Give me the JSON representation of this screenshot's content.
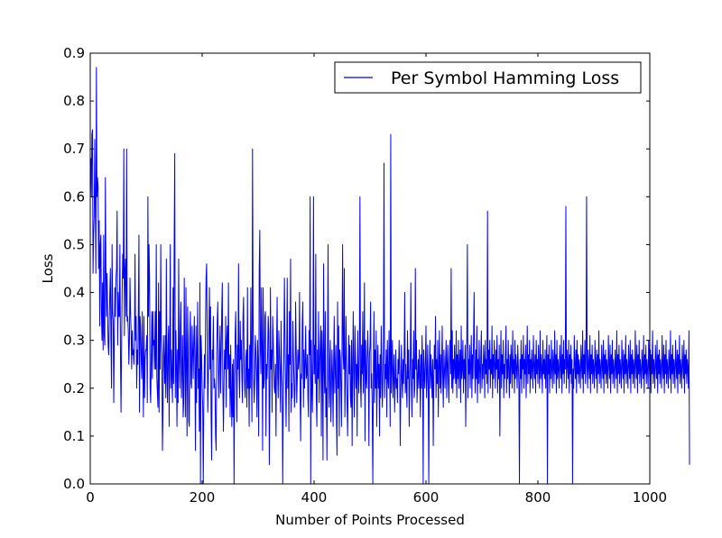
{
  "chart_data": {
    "type": "line",
    "title": "",
    "xlabel": "Number of Points Processed",
    "ylabel": "Loss",
    "xlim": [
      0,
      1000
    ],
    "ylim": [
      0.0,
      0.9
    ],
    "x_ticks": [
      0,
      200,
      400,
      600,
      800,
      1000
    ],
    "x_tick_labels": [
      "0",
      "200",
      "400",
      "600",
      "800",
      "1000"
    ],
    "y_ticks": [
      0.0,
      0.1,
      0.2,
      0.3,
      0.4,
      0.5,
      0.6,
      0.7,
      0.8,
      0.9
    ],
    "y_tick_labels": [
      "0.0",
      "0.1",
      "0.2",
      "0.3",
      "0.4",
      "0.5",
      "0.6",
      "0.7",
      "0.8",
      "0.9"
    ],
    "grid": false,
    "legend_position": "top-right",
    "x_start": 0,
    "x_step": 1,
    "series": [
      {
        "name": "Per Symbol Hamming Loss",
        "color": "#0000ff",
        "values": [
          0.65,
          0.68,
          0.6,
          0.73,
          0.74,
          0.44,
          0.52,
          0.56,
          0.72,
          0.58,
          0.44,
          0.87,
          0.6,
          0.64,
          0.62,
          0.45,
          0.55,
          0.33,
          0.5,
          0.52,
          0.36,
          0.3,
          0.42,
          0.28,
          0.52,
          0.31,
          0.29,
          0.64,
          0.45,
          0.35,
          0.44,
          0.36,
          0.29,
          0.27,
          0.34,
          0.4,
          0.45,
          0.3,
          0.2,
          0.5,
          0.36,
          0.34,
          0.17,
          0.31,
          0.41,
          0.35,
          0.43,
          0.45,
          0.57,
          0.29,
          0.4,
          0.35,
          0.35,
          0.5,
          0.27,
          0.15,
          0.29,
          0.4,
          0.48,
          0.43,
          0.7,
          0.31,
          0.44,
          0.47,
          0.35,
          0.7,
          0.34,
          0.35,
          0.32,
          0.25,
          0.3,
          0.43,
          0.36,
          0.32,
          0.24,
          0.32,
          0.27,
          0.28,
          0.25,
          0.3,
          0.48,
          0.3,
          0.35,
          0.2,
          0.28,
          0.25,
          0.36,
          0.52,
          0.15,
          0.35,
          0.33,
          0.26,
          0.22,
          0.36,
          0.25,
          0.14,
          0.35,
          0.18,
          0.26,
          0.28,
          0.28,
          0.31,
          0.17,
          0.6,
          0.35,
          0.5,
          0.43,
          0.2,
          0.17,
          0.26,
          0.36,
          0.22,
          0.36,
          0.29,
          0.3,
          0.24,
          0.36,
          0.24,
          0.5,
          0.22,
          0.19,
          0.16,
          0.42,
          0.15,
          0.36,
          0.24,
          0.5,
          0.3,
          0.27,
          0.07,
          0.15,
          0.31,
          0.26,
          0.21,
          0.31,
          0.18,
          0.47,
          0.23,
          0.17,
          0.29,
          0.33,
          0.12,
          0.28,
          0.5,
          0.2,
          0.28,
          0.22,
          0.17,
          0.41,
          0.21,
          0.5,
          0.69,
          0.18,
          0.32,
          0.25,
          0.12,
          0.28,
          0.17,
          0.47,
          0.26,
          0.2,
          0.33,
          0.38,
          0.18,
          0.24,
          0.31,
          0.14,
          0.17,
          0.43,
          0.26,
          0.14,
          0.41,
          0.24,
          0.1,
          0.37,
          0.29,
          0.13,
          0.12,
          0.31,
          0.36,
          0.21,
          0.2,
          0.33,
          0.28,
          0.22,
          0.3,
          0.35,
          0.24,
          0.07,
          0.33,
          0.17,
          0.27,
          0.38,
          0.2,
          0.24,
          0.11,
          0.42,
          0.0,
          0.31,
          0.27,
          0.2,
          0.16,
          0.0,
          0.17,
          0.27,
          0.2,
          0.33,
          0.43,
          0.46,
          0.31,
          0.15,
          0.22,
          0.32,
          0.41,
          0.24,
          0.37,
          0.14,
          0.05,
          0.28,
          0.26,
          0.35,
          0.2,
          0.22,
          0.2,
          0.1,
          0.07,
          0.27,
          0.34,
          0.38,
          0.23,
          0.18,
          0.27,
          0.33,
          0.19,
          0.27,
          0.36,
          0.42,
          0.2,
          0.11,
          0.21,
          0.28,
          0.24,
          0.35,
          0.16,
          0.3,
          0.33,
          0.24,
          0.42,
          0.2,
          0.27,
          0.14,
          0.29,
          0.18,
          0.12,
          0.25,
          0.14,
          0.26,
          0.0,
          0.2,
          0.31,
          0.36,
          0.25,
          0.13,
          0.29,
          0.24,
          0.46,
          0.23,
          0.18,
          0.34,
          0.26,
          0.3,
          0.22,
          0.17,
          0.35,
          0.39,
          0.25,
          0.2,
          0.18,
          0.26,
          0.28,
          0.16,
          0.41,
          0.2,
          0.24,
          0.12,
          0.29,
          0.2,
          0.41,
          0.24,
          0.13,
          0.7,
          0.35,
          0.22,
          0.17,
          0.22,
          0.31,
          0.28,
          0.23,
          0.14,
          0.3,
          0.25,
          0.1,
          0.45,
          0.53,
          0.28,
          0.23,
          0.41,
          0.29,
          0.07,
          0.41,
          0.2,
          0.22,
          0.35,
          0.36,
          0.1,
          0.25,
          0.22,
          0.27,
          0.35,
          0.32,
          0.04,
          0.18,
          0.41,
          0.24,
          0.28,
          0.15,
          0.35,
          0.3,
          0.25,
          0.2,
          0.19,
          0.25,
          0.1,
          0.29,
          0.39,
          0.22,
          0.18,
          0.32,
          0.28,
          0.22,
          0.15,
          0.34,
          0.24,
          0.2,
          0.0,
          0.17,
          0.27,
          0.43,
          0.31,
          0.22,
          0.12,
          0.24,
          0.43,
          0.2,
          0.27,
          0.11,
          0.36,
          0.25,
          0.47,
          0.15,
          0.21,
          0.18,
          0.34,
          0.27,
          0.22,
          0.16,
          0.2,
          0.38,
          0.29,
          0.17,
          0.22,
          0.28,
          0.24,
          0.26,
          0.4,
          0.2,
          0.09,
          0.23,
          0.22,
          0.34,
          0.38,
          0.16,
          0.28,
          0.2,
          0.25,
          0.33,
          0.22,
          0.23,
          0.27,
          0.18,
          0.14,
          0.32,
          0.27,
          0.6,
          0.0,
          0.3,
          0.2,
          0.15,
          0.26,
          0.6,
          0.23,
          0.29,
          0.21,
          0.48,
          0.18,
          0.12,
          0.28,
          0.22,
          0.36,
          0.17,
          0.24,
          0.29,
          0.33,
          0.1,
          0.32,
          0.26,
          0.05,
          0.46,
          0.24,
          0.19,
          0.36,
          0.14,
          0.2,
          0.05,
          0.27,
          0.5,
          0.22,
          0.16,
          0.26,
          0.3,
          0.13,
          0.2,
          0.28,
          0.23,
          0.12,
          0.26,
          0.35,
          0.19,
          0.24,
          0.29,
          0.14,
          0.06,
          0.38,
          0.2,
          0.33,
          0.1,
          0.28,
          0.26,
          0.2,
          0.12,
          0.3,
          0.5,
          0.27,
          0.24,
          0.45,
          0.14,
          0.22,
          0.35,
          0.26,
          0.17,
          0.1,
          0.21,
          0.31,
          0.23,
          0.29,
          0.18,
          0.16,
          0.3,
          0.08,
          0.25,
          0.36,
          0.22,
          0.14,
          0.33,
          0.27,
          0.2,
          0.25,
          0.1,
          0.32,
          0.24,
          0.19,
          0.28,
          0.6,
          0.21,
          0.16,
          0.29,
          0.23,
          0.36,
          0.19,
          0.26,
          0.42,
          0.09,
          0.3,
          0.22,
          0.2,
          0.27,
          0.32,
          0.25,
          0.08,
          0.27,
          0.29,
          0.38,
          0.2,
          0.23,
          0.15,
          0.0,
          0.24,
          0.36,
          0.17,
          0.28,
          0.2,
          0.32,
          0.12,
          0.22,
          0.29,
          0.2,
          0.25,
          0.1,
          0.27,
          0.18,
          0.33,
          0.24,
          0.16,
          0.22,
          0.3,
          0.67,
          0.18,
          0.25,
          0.22,
          0.28,
          0.14,
          0.3,
          0.22,
          0.2,
          0.32,
          0.26,
          0.12,
          0.73,
          0.19,
          0.25,
          0.3,
          0.18,
          0.23,
          0.27,
          0.15,
          0.21,
          0.28,
          0.2,
          0.22,
          0.17,
          0.26,
          0.23,
          0.3,
          0.24,
          0.08,
          0.2,
          0.29,
          0.22,
          0.18,
          0.26,
          0.21,
          0.27,
          0.4,
          0.19,
          0.25,
          0.2,
          0.16,
          0.32,
          0.22,
          0.28,
          0.12,
          0.21,
          0.26,
          0.42,
          0.2,
          0.14,
          0.26,
          0.22,
          0.32,
          0.18,
          0.2,
          0.45,
          0.24,
          0.3,
          0.17,
          0.22,
          0.26,
          0.2,
          0.28,
          0.23,
          0.14,
          0.27,
          0.2,
          0.31,
          0.25,
          0.0,
          0.28,
          0.23,
          0.2,
          0.26,
          0.33,
          0.18,
          0.22,
          0.29,
          0.21,
          0.0,
          0.24,
          0.3,
          0.2,
          0.27,
          0.23,
          0.18,
          0.26,
          0.08,
          0.22,
          0.29,
          0.24,
          0.35,
          0.18,
          0.26,
          0.21,
          0.3,
          0.14,
          0.24,
          0.32,
          0.2,
          0.27,
          0.19,
          0.25,
          0.33,
          0.22,
          0.16,
          0.28,
          0.24,
          0.2,
          0.26,
          0.3,
          0.18,
          0.25,
          0.29,
          0.21,
          0.17,
          0.26,
          0.3,
          0.23,
          0.45,
          0.2,
          0.32,
          0.19,
          0.26,
          0.22,
          0.29,
          0.24,
          0.21,
          0.32,
          0.18,
          0.27,
          0.22,
          0.3,
          0.2,
          0.25,
          0.28,
          0.17,
          0.33,
          0.22,
          0.24,
          0.3,
          0.19,
          0.26,
          0.22,
          0.29,
          0.12,
          0.25,
          0.3,
          0.5,
          0.18,
          0.26,
          0.23,
          0.29,
          0.2,
          0.25,
          0.31,
          0.18,
          0.27,
          0.22,
          0.3,
          0.4,
          0.24,
          0.19,
          0.28,
          0.22,
          0.33,
          0.17,
          0.26,
          0.21,
          0.3,
          0.24,
          0.19,
          0.27,
          0.32,
          0.2,
          0.25,
          0.22,
          0.29,
          0.26,
          0.18,
          0.3,
          0.23,
          0.26,
          0.21,
          0.57,
          0.19,
          0.28,
          0.24,
          0.3,
          0.2,
          0.26,
          0.23,
          0.33,
          0.18,
          0.27,
          0.22,
          0.3,
          0.25,
          0.2,
          0.28,
          0.24,
          0.31,
          0.19,
          0.26,
          0.22,
          0.29,
          0.1,
          0.24,
          0.32,
          0.2,
          0.27,
          0.23,
          0.3,
          0.18,
          0.25,
          0.22,
          0.28,
          0.33,
          0.19,
          0.26,
          0.22,
          0.3,
          0.24,
          0.18,
          0.27,
          0.21,
          0.29,
          0.25,
          0.2,
          0.32,
          0.23,
          0.26,
          0.19,
          0.3,
          0.22,
          0.27,
          0.24,
          0.2,
          0.29,
          0.25,
          0.21,
          0.0,
          0.26,
          0.22,
          0.3,
          0.19,
          0.27,
          0.24,
          0.31,
          0.2,
          0.26,
          0.23,
          0.29,
          0.18,
          0.25,
          0.33,
          0.21,
          0.27,
          0.23,
          0.3,
          0.19,
          0.26,
          0.22,
          0.28,
          0.24,
          0.2,
          0.31,
          0.25,
          0.22,
          0.27,
          0.19,
          0.3,
          0.23,
          0.26,
          0.21,
          0.29,
          0.25,
          0.2,
          0.32,
          0.22,
          0.27,
          0.24,
          0.19,
          0.3,
          0.23,
          0.26,
          0.22,
          0.28,
          0.2,
          0.25,
          0.31,
          0.0,
          0.27,
          0.23,
          0.29,
          0.19,
          0.26,
          0.22,
          0.3,
          0.24,
          0.2,
          0.28,
          0.25,
          0.21,
          0.32,
          0.23,
          0.27,
          0.19,
          0.3,
          0.22,
          0.26,
          0.24,
          0.2,
          0.29,
          0.25,
          0.22,
          0.31,
          0.19,
          0.27,
          0.23,
          0.3,
          0.21,
          0.26,
          0.24,
          0.58,
          0.2,
          0.28,
          0.25,
          0.22,
          0.3,
          0.19,
          0.27,
          0.23,
          0.29,
          0.21,
          0.26,
          0.0,
          0.24,
          0.2,
          0.31,
          0.25,
          0.22,
          0.28,
          0.19,
          0.3,
          0.23,
          0.27,
          0.21,
          0.26,
          0.24,
          0.2,
          0.29,
          0.25,
          0.22,
          0.32,
          0.19,
          0.27,
          0.23,
          0.3,
          0.21,
          0.26,
          0.6,
          0.24,
          0.2,
          0.28,
          0.25,
          0.22,
          0.31,
          0.19,
          0.27,
          0.23,
          0.29,
          0.21,
          0.26,
          0.24,
          0.2,
          0.3,
          0.25,
          0.22,
          0.28,
          0.19,
          0.27,
          0.23,
          0.32,
          0.21,
          0.26,
          0.24,
          0.2,
          0.29,
          0.25,
          0.22,
          0.3,
          0.19,
          0.27,
          0.23,
          0.28,
          0.21,
          0.26,
          0.24,
          0.2,
          0.31,
          0.25,
          0.22,
          0.29,
          0.19,
          0.27,
          0.23,
          0.3,
          0.21,
          0.26,
          0.24,
          0.2,
          0.28,
          0.25,
          0.22,
          0.32,
          0.19,
          0.27,
          0.23,
          0.29,
          0.21,
          0.26,
          0.24,
          0.2,
          0.3,
          0.25,
          0.22,
          0.28,
          0.19,
          0.27,
          0.23,
          0.31,
          0.21,
          0.26,
          0.24,
          0.2,
          0.29,
          0.25,
          0.22,
          0.3,
          0.19,
          0.27,
          0.23,
          0.28,
          0.21,
          0.26,
          0.24,
          0.2,
          0.32,
          0.25,
          0.22,
          0.29,
          0.19,
          0.27,
          0.23,
          0.3,
          0.21,
          0.26,
          0.24,
          0.2,
          0.28,
          0.25,
          0.22,
          0.31,
          0.19,
          0.27,
          0.23,
          0.29,
          0.21,
          0.26,
          0.24,
          0.2,
          0.3,
          0.25,
          0.22,
          0.28,
          0.19,
          0.27,
          0.23,
          0.32,
          0.21,
          0.26,
          0.24,
          0.2,
          0.29,
          0.25,
          0.22,
          0.3,
          0.19,
          0.27,
          0.23,
          0.28,
          0.21,
          0.26,
          0.24,
          0.2,
          0.31,
          0.25,
          0.22,
          0.29,
          0.19,
          0.27,
          0.23,
          0.3,
          0.21,
          0.26,
          0.24,
          0.2,
          0.28,
          0.25,
          0.22,
          0.32,
          0.19,
          0.27,
          0.23,
          0.29,
          0.21,
          0.26,
          0.24,
          0.2,
          0.3,
          0.25,
          0.22,
          0.28,
          0.19,
          0.27,
          0.23,
          0.31,
          0.21,
          0.26,
          0.24,
          0.2,
          0.29,
          0.25,
          0.22,
          0.3,
          0.19,
          0.27,
          0.23,
          0.28,
          0.21,
          0.26,
          0.24,
          0.2,
          0.32,
          0.04
        ]
      }
    ]
  }
}
